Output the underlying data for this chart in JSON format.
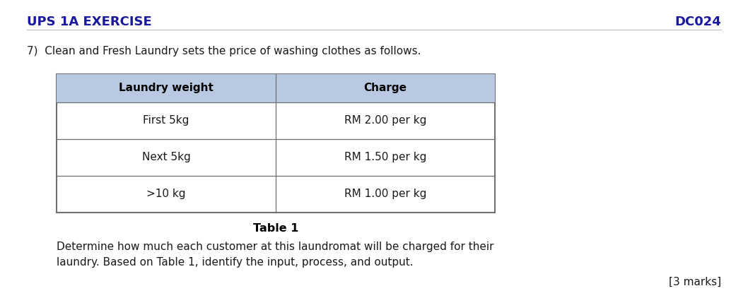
{
  "header_left": "UPS 1A EXERCISE",
  "header_right": "DC024",
  "header_color": "#1919A0",
  "header_fontsize": 13,
  "question_text": "7)  Clean and Fresh Laundry sets the price of washing clothes as follows.",
  "question_fontsize": 11,
  "table_caption": "Table 1",
  "table_header_bg": "#B8C9E1",
  "table_border_color": "#707070",
  "table_col1_header": "Laundry weight",
  "table_col2_header": "Charge",
  "table_rows": [
    [
      "First 5kg",
      "RM 2.00 per kg"
    ],
    [
      "Next 5kg",
      "RM 1.50 per kg"
    ],
    [
      ">10 kg",
      "RM 1.00 per kg"
    ]
  ],
  "table_fontsize": 11,
  "table_header_fontsize": 11,
  "paragraph_line1": "Determine how much each customer at this laundromat will be charged for their",
  "paragraph_line2": "laundry. Based on Table 1, identify the input, process, and output.",
  "marks_text": "[3 marks]",
  "body_fontsize": 11,
  "bg_color": "#FFFFFF"
}
